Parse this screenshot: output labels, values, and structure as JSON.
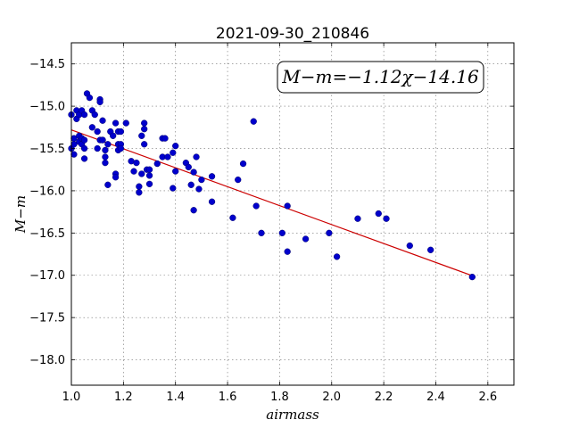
{
  "chart_data": {
    "type": "scatter",
    "title": "2021-09-30_210846",
    "xlabel": "airmass",
    "ylabel": "M−m",
    "xlim": [
      1.0,
      2.7
    ],
    "ylim": [
      -18.3,
      -14.25
    ],
    "y_inverted": true,
    "grid": true,
    "x_ticks": [
      1.0,
      1.2,
      1.4,
      1.6,
      1.8,
      2.0,
      2.2,
      2.4,
      2.6
    ],
    "x_tick_labels": [
      "1.0",
      "1.2",
      "1.4",
      "1.6",
      "1.8",
      "2.0",
      "2.2",
      "2.4",
      "2.6"
    ],
    "y_ticks": [
      -14.5,
      -15.0,
      -15.5,
      -16.0,
      -16.5,
      -17.0,
      -17.5,
      -18.0
    ],
    "y_tick_labels": [
      "−14.5",
      "−15.0",
      "−15.5",
      "−16.0",
      "−16.5",
      "−17.0",
      "−17.5",
      "−18.0"
    ],
    "annotation": "M−m=−1.12χ−14.16",
    "annotation_position": "top-right",
    "points": {
      "color": "#0000cc",
      "x": [
        1.0,
        1.0,
        1.01,
        1.01,
        1.01,
        1.02,
        1.02,
        1.03,
        1.03,
        1.03,
        1.04,
        1.04,
        1.04,
        1.05,
        1.05,
        1.05,
        1.05,
        1.06,
        1.07,
        1.08,
        1.08,
        1.09,
        1.1,
        1.1,
        1.11,
        1.11,
        1.11,
        1.12,
        1.12,
        1.12,
        1.13,
        1.13,
        1.13,
        1.14,
        1.14,
        1.15,
        1.16,
        1.17,
        1.17,
        1.17,
        1.18,
        1.18,
        1.18,
        1.19,
        1.19,
        1.19,
        1.21,
        1.23,
        1.24,
        1.25,
        1.26,
        1.26,
        1.27,
        1.27,
        1.28,
        1.28,
        1.28,
        1.29,
        1.3,
        1.3,
        1.3,
        1.33,
        1.35,
        1.35,
        1.36,
        1.37,
        1.39,
        1.39,
        1.4,
        1.4,
        1.44,
        1.45,
        1.46,
        1.47,
        1.47,
        1.48,
        1.49,
        1.5,
        1.54,
        1.54,
        1.62,
        1.64,
        1.66,
        1.7,
        1.71,
        1.73,
        1.81,
        1.83,
        1.83,
        1.9,
        1.99,
        2.02,
        2.1,
        2.18,
        2.21,
        2.3,
        2.38,
        2.54
      ],
      "y": [
        -15.1,
        -15.5,
        -15.38,
        -15.45,
        -15.57,
        -15.05,
        -15.15,
        -15.1,
        -15.35,
        -15.42,
        -15.05,
        -15.38,
        -15.45,
        -15.4,
        -15.5,
        -15.62,
        -15.1,
        -14.85,
        -14.9,
        -15.05,
        -15.25,
        -15.1,
        -15.3,
        -15.5,
        -14.92,
        -14.95,
        -15.4,
        -15.17,
        -15.4,
        -15.4,
        -15.6,
        -15.67,
        -15.52,
        -15.45,
        -15.93,
        -15.3,
        -15.35,
        -15.2,
        -15.8,
        -15.84,
        -15.3,
        -15.45,
        -15.52,
        -15.45,
        -15.5,
        -15.3,
        -15.2,
        -15.65,
        -15.77,
        -15.67,
        -15.95,
        -16.02,
        -15.35,
        -15.8,
        -15.2,
        -15.27,
        -15.45,
        -15.75,
        -15.82,
        -15.92,
        -15.75,
        -15.68,
        -15.38,
        -15.6,
        -15.38,
        -15.6,
        -15.55,
        -15.97,
        -15.47,
        -15.77,
        -15.67,
        -15.72,
        -15.93,
        -15.78,
        -16.23,
        -15.6,
        -15.98,
        -15.87,
        -15.83,
        -16.13,
        -16.32,
        -15.87,
        -15.68,
        -15.18,
        -16.18,
        -16.5,
        -16.5,
        -16.18,
        -16.72,
        -16.57,
        -16.5,
        -16.78,
        -16.33,
        -16.27,
        -16.33,
        -16.65,
        -16.7,
        -17.02
      ]
    },
    "fit_line": {
      "color": "#cc0000",
      "slope": -1.12,
      "intercept": -14.16,
      "x_range": [
        1.0,
        2.54
      ]
    }
  }
}
